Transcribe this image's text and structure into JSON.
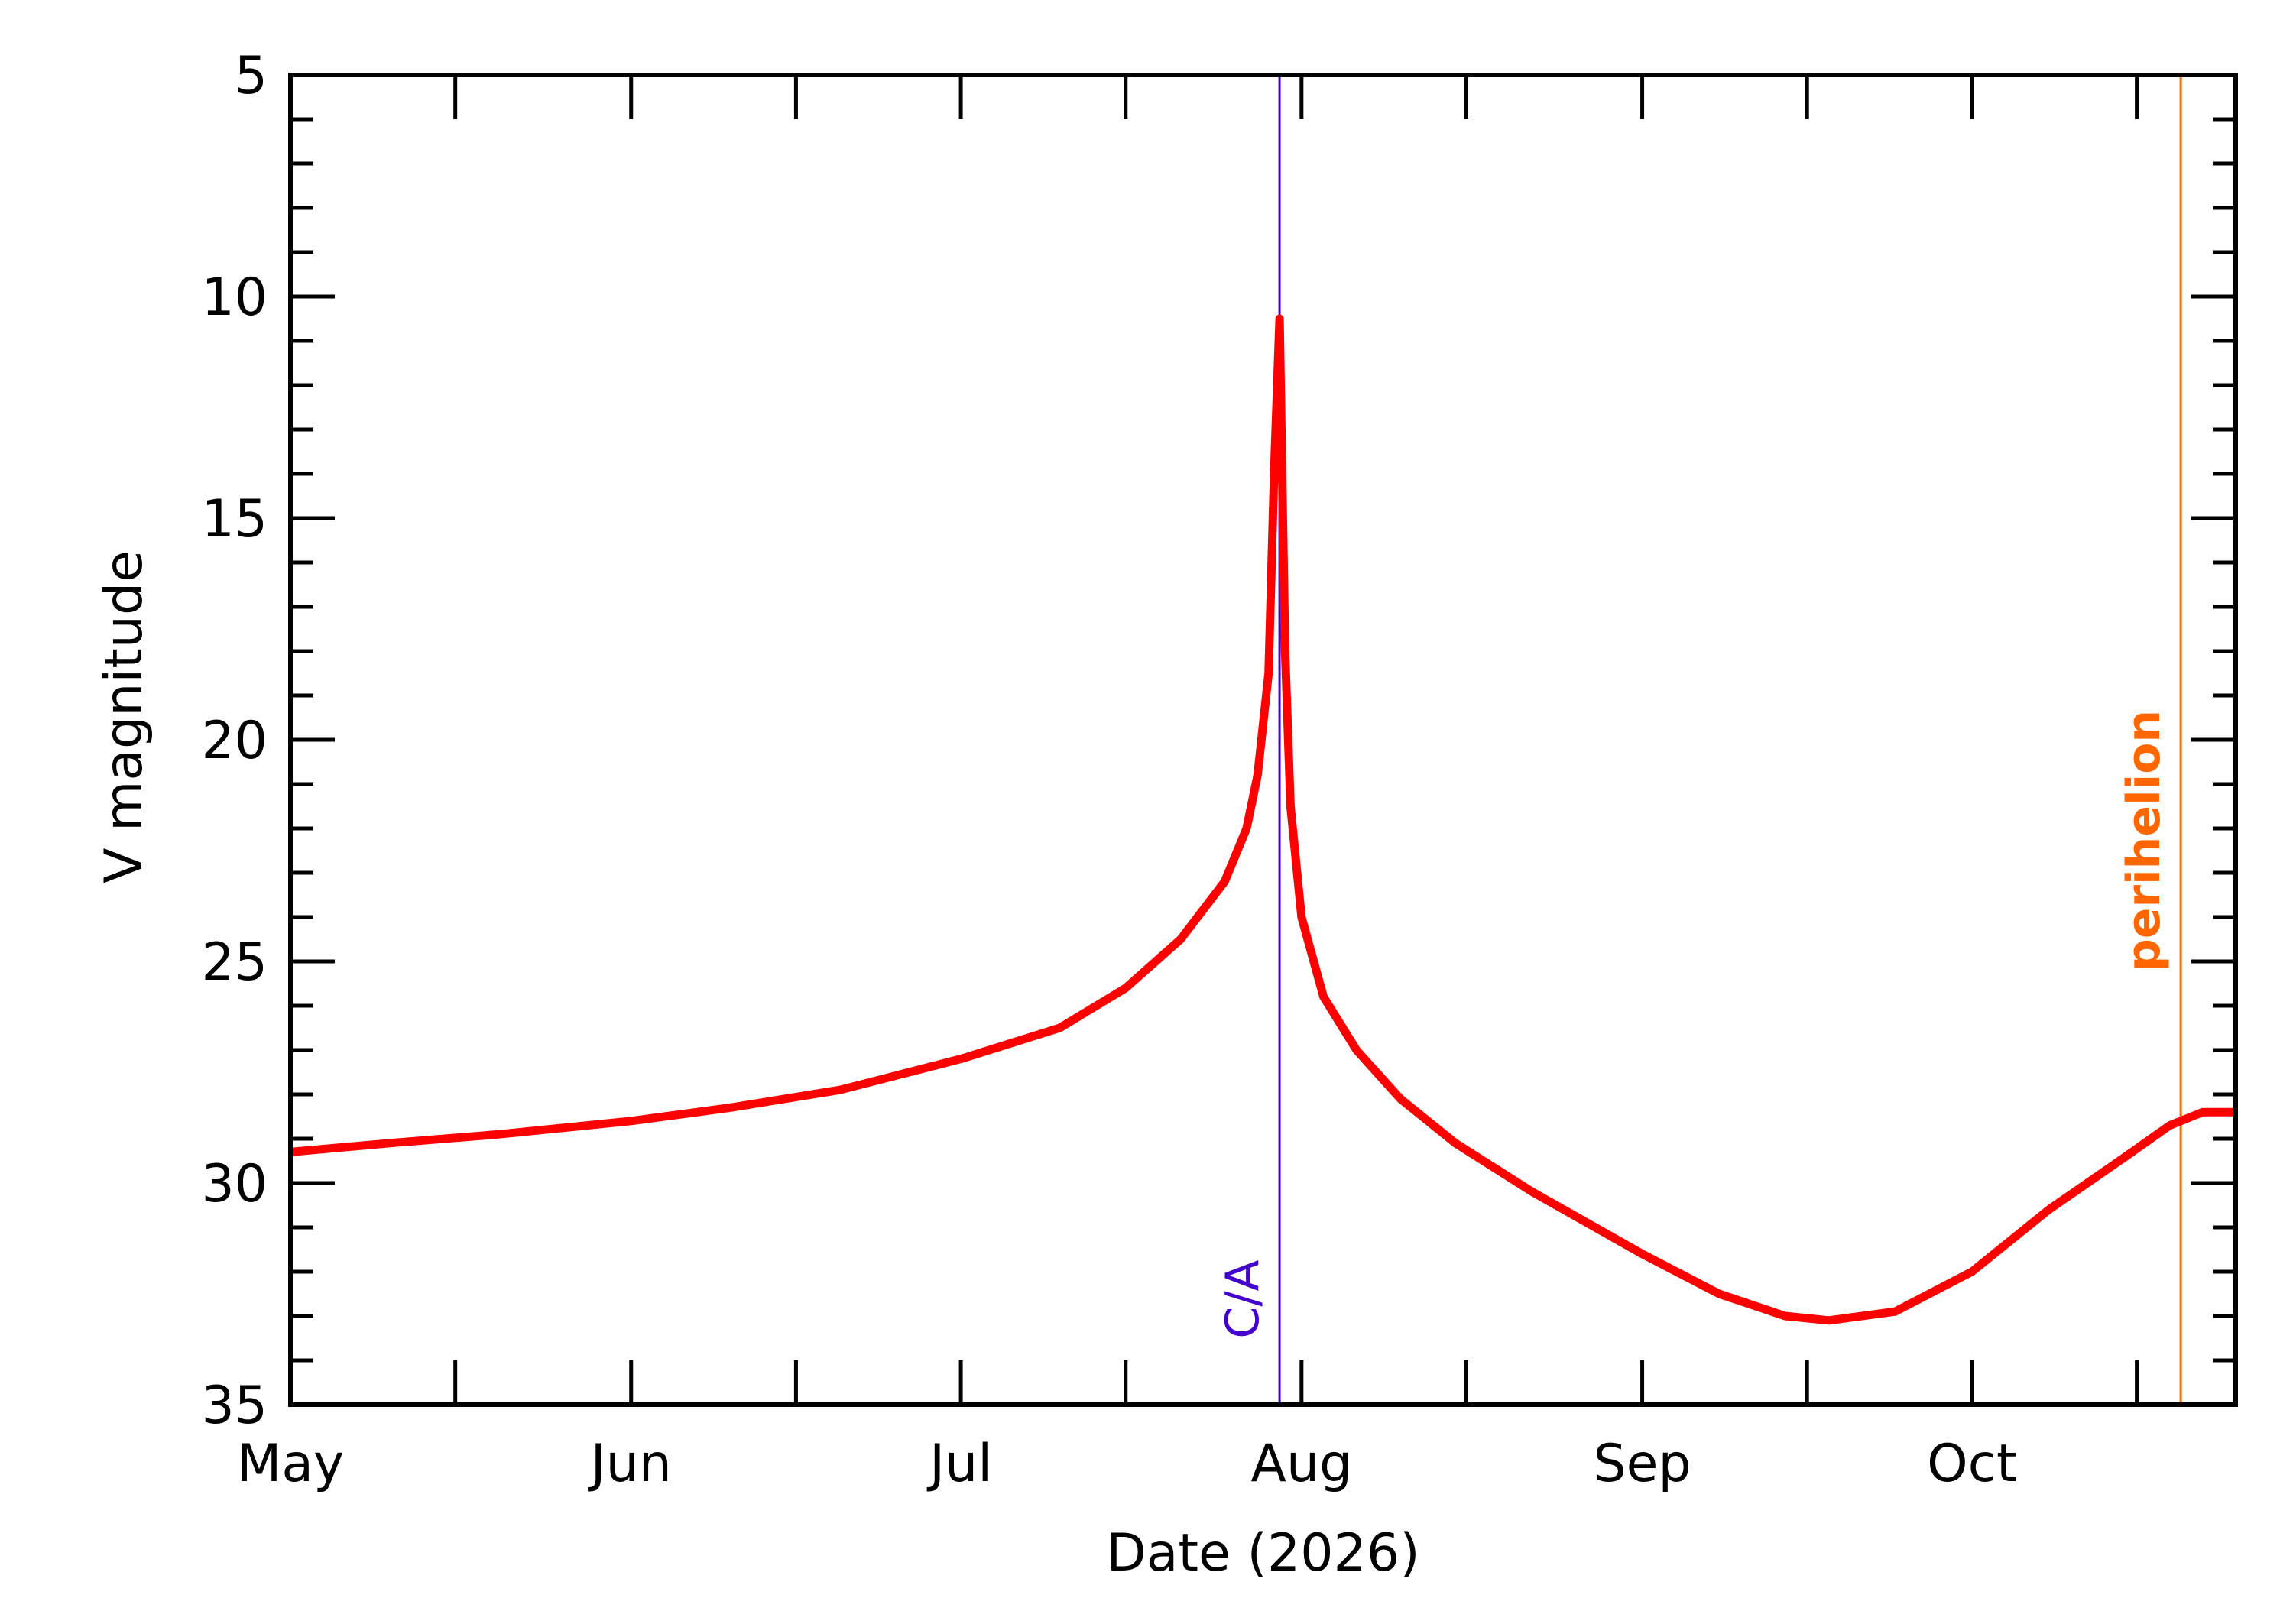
{
  "chart_data": {
    "type": "line",
    "title": "",
    "xlabel": "Date (2026)",
    "ylabel": "V magnitude",
    "x_axis_kind": "date",
    "xlim": [
      "2026-05-01",
      "2026-10-25"
    ],
    "ylim": [
      35,
      5
    ],
    "y_inverted": true,
    "grid": false,
    "x_ticks": [
      {
        "label": "May",
        "date": "2026-05-01"
      },
      {
        "label": "Jun",
        "date": "2026-06-01"
      },
      {
        "label": "Jul",
        "date": "2026-07-01"
      },
      {
        "label": "Aug",
        "date": "2026-08-01"
      },
      {
        "label": "Sep",
        "date": "2026-09-01"
      },
      {
        "label": "Oct",
        "date": "2026-10-01"
      }
    ],
    "y_ticks": [
      5,
      10,
      15,
      20,
      25,
      30,
      35
    ],
    "series": [
      {
        "color": "#ff0000",
        "points": [
          {
            "date": "2026-05-01",
            "y": 29.3
          },
          {
            "date": "2026-05-10",
            "y": 29.1
          },
          {
            "date": "2026-05-20",
            "y": 28.9
          },
          {
            "date": "2026-06-01",
            "y": 28.6
          },
          {
            "date": "2026-06-10",
            "y": 28.3
          },
          {
            "date": "2026-06-20",
            "y": 27.9
          },
          {
            "date": "2026-07-01",
            "y": 27.2
          },
          {
            "date": "2026-07-10",
            "y": 26.5
          },
          {
            "date": "2026-07-16",
            "y": 25.6
          },
          {
            "date": "2026-07-21",
            "y": 24.5
          },
          {
            "date": "2026-07-25",
            "y": 23.2
          },
          {
            "date": "2026-07-27",
            "y": 22.0
          },
          {
            "date": "2026-07-28",
            "y": 20.8
          },
          {
            "date": "2026-07-29",
            "y": 18.5
          },
          {
            "date": "2026-07-29T12:00",
            "y": 14.0
          },
          {
            "date": "2026-07-30",
            "y": 10.5
          },
          {
            "date": "2026-07-30T12:00",
            "y": 18.0
          },
          {
            "date": "2026-07-31",
            "y": 21.5
          },
          {
            "date": "2026-08-01",
            "y": 24.0
          },
          {
            "date": "2026-08-03",
            "y": 25.8
          },
          {
            "date": "2026-08-06",
            "y": 27.0
          },
          {
            "date": "2026-08-10",
            "y": 28.1
          },
          {
            "date": "2026-08-15",
            "y": 29.1
          },
          {
            "date": "2026-08-22",
            "y": 30.2
          },
          {
            "date": "2026-09-01",
            "y": 31.6
          },
          {
            "date": "2026-09-08",
            "y": 32.5
          },
          {
            "date": "2026-09-14",
            "y": 33.0
          },
          {
            "date": "2026-09-18",
            "y": 33.1
          },
          {
            "date": "2026-09-24",
            "y": 32.9
          },
          {
            "date": "2026-10-01",
            "y": 32.0
          },
          {
            "date": "2026-10-08",
            "y": 30.6
          },
          {
            "date": "2026-10-15",
            "y": 29.4
          },
          {
            "date": "2026-10-19",
            "y": 28.7
          },
          {
            "date": "2026-10-22",
            "y": 28.4
          },
          {
            "date": "2026-10-25",
            "y": 28.4
          }
        ]
      }
    ],
    "annotations": [
      {
        "label": "C/A",
        "date": "2026-07-30",
        "color": "#4400cc"
      },
      {
        "label": "perihelion",
        "date": "2026-10-20",
        "color": "#ff6600"
      }
    ]
  }
}
